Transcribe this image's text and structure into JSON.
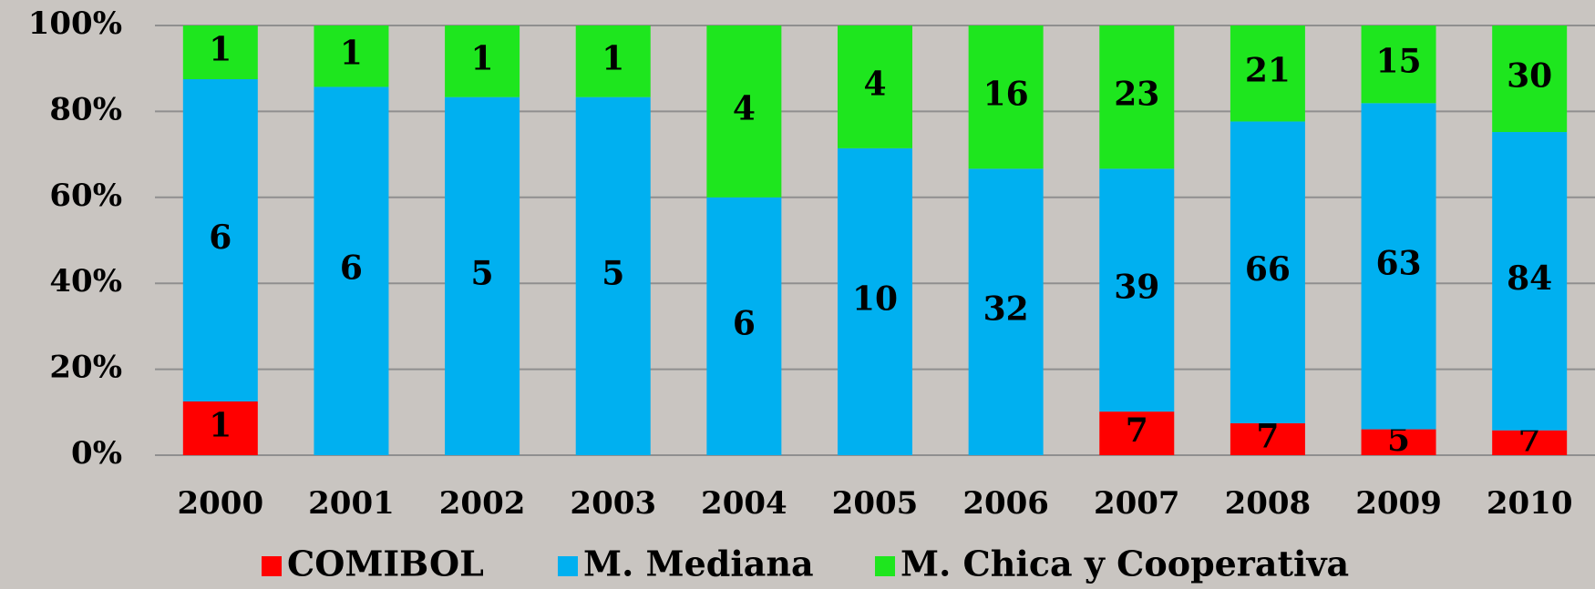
{
  "chart_data": {
    "type": "bar",
    "stacked": "percent",
    "categories": [
      "2000",
      "2001",
      "2002",
      "2003",
      "2004",
      "2005",
      "2006",
      "2007",
      "2008",
      "2009",
      "2010"
    ],
    "series": [
      {
        "name": "COMIBOL",
        "color": "#ff0000",
        "values": [
          1,
          null,
          null,
          null,
          null,
          null,
          null,
          7,
          7,
          5,
          7
        ]
      },
      {
        "name": "M. Mediana",
        "color": "#00b0f0",
        "values": [
          6,
          6,
          5,
          5,
          6,
          10,
          32,
          39,
          66,
          63,
          84
        ]
      },
      {
        "name": "M. Chica y Cooperativa",
        "color": "#1ee61e",
        "values": [
          1,
          1,
          1,
          1,
          4,
          4,
          16,
          23,
          21,
          15,
          30
        ]
      }
    ],
    "ylim": [
      0,
      100
    ],
    "yticks": [
      {
        "value": 0,
        "label": "0%"
      },
      {
        "value": 20,
        "label": "20%"
      },
      {
        "value": 40,
        "label": "40%"
      },
      {
        "value": 60,
        "label": "60%"
      },
      {
        "value": 80,
        "label": "80%"
      },
      {
        "value": 100,
        "label": "100%"
      }
    ],
    "grid": true,
    "legend": "bottom"
  }
}
